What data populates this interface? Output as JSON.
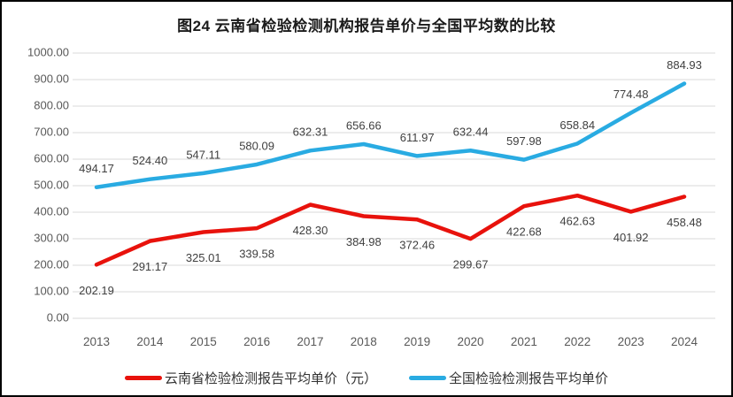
{
  "chart_data": {
    "type": "line",
    "title": "图24 云南省检验检测机构报告单价与全国平均数的比较",
    "categories": [
      "2013",
      "2014",
      "2015",
      "2016",
      "2017",
      "2018",
      "2019",
      "2020",
      "2021",
      "2022",
      "2023",
      "2024"
    ],
    "series": [
      {
        "name": "云南省检验检测报告平均单价（元）",
        "color": "#e8120c",
        "label_position": "below",
        "values": [
          202.19,
          291.17,
          325.01,
          339.58,
          428.3,
          384.98,
          372.46,
          299.67,
          422.68,
          462.63,
          401.92,
          458.48
        ]
      },
      {
        "name": "全国检验检测报告平均单价",
        "color": "#29abe2",
        "label_position": "above",
        "values": [
          494.17,
          524.4,
          547.11,
          580.09,
          632.31,
          656.66,
          611.97,
          632.44,
          597.98,
          658.84,
          774.48,
          884.93
        ]
      }
    ],
    "ylim": [
      0,
      1000
    ],
    "ytick_step": 100,
    "yticks": [
      "0.00",
      "100.00",
      "200.00",
      "300.00",
      "400.00",
      "500.00",
      "600.00",
      "700.00",
      "800.00",
      "900.00",
      "1000.00"
    ],
    "value_label_decimals": 2,
    "grid": true,
    "gridline_color": "#d9d9d9",
    "legend_position": "bottom"
  }
}
